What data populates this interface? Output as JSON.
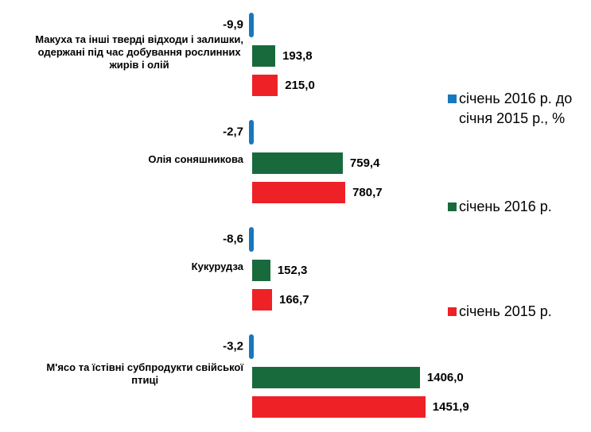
{
  "chart_data": {
    "type": "bar",
    "orientation": "horizontal",
    "title": "",
    "categories": [
      "Макуха та інші тверді відходи і залишки, одержані під час добування рослинних жирів і олій",
      "Олія соняшникова",
      "Кукурудза",
      "М'ясо та їстівні субпродукти свійської птиці"
    ],
    "series": [
      {
        "name": "січень 2016 р. до січня 2015 р., %",
        "color": "#1778be",
        "values": [
          -9.9,
          -2.7,
          -8.6,
          -3.2
        ]
      },
      {
        "name": "січень 2016 р.",
        "color": "#186a3d",
        "values": [
          193.8,
          759.4,
          152.3,
          1406.0
        ]
      },
      {
        "name": "січень 2015 р.",
        "color": "#ee2127",
        "values": [
          215.0,
          780.7,
          166.7,
          1451.9
        ]
      }
    ],
    "value_axis_range": [
      0,
      1500
    ],
    "gridlines": false,
    "data_labels": true,
    "legend_position": "right"
  },
  "groups": [
    {
      "label_lines": [
        "Макуха та інші тверді відходи і залишки,",
        "одержані під час добування рослинних",
        "жирів і олій"
      ],
      "pct_label": "-9,9",
      "green_label": "193,8",
      "red_label": "215,0"
    },
    {
      "label_lines": [
        "Олія соняшникова"
      ],
      "pct_label": "-2,7",
      "green_label": "759,4",
      "red_label": "780,7"
    },
    {
      "label_lines": [
        "Кукурудза"
      ],
      "pct_label": "-8,6",
      "green_label": "152,3",
      "red_label": "166,7"
    },
    {
      "label_lines": [
        "М'ясо та їстівні субпродукти свійської",
        "птиці"
      ],
      "pct_label": "-3,2",
      "green_label": "1406,0",
      "red_label": "1451,9"
    }
  ],
  "legend": {
    "items": [
      {
        "swatch_color": "#1778be",
        "lines": [
          "січень 2016 р. до",
          "січня 2015 р., %"
        ]
      },
      {
        "swatch_color": "#186a3d",
        "lines": [
          "січень 2016 р."
        ]
      },
      {
        "swatch_color": "#ee2127",
        "lines": [
          "січень 2015 р."
        ]
      }
    ]
  }
}
